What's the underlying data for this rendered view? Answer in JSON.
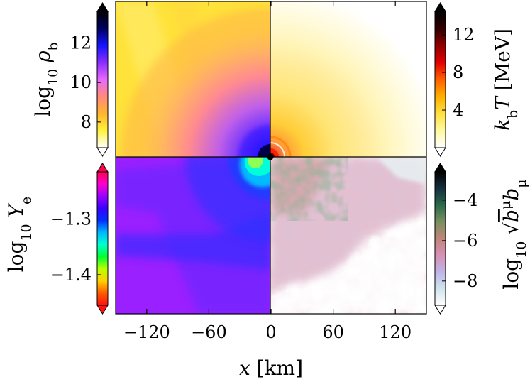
{
  "chart_data": {
    "type": "heatmap",
    "title": "",
    "xlabel": "x [km]",
    "x_ticks": [
      -120,
      -60,
      0,
      60,
      120
    ],
    "xlim": [
      -150,
      150
    ],
    "panels": [
      {
        "quantity": "log10 rho_b",
        "label_parts": [
          "log",
          "10",
          " ρ",
          "b"
        ],
        "quadrant": "top-left",
        "colormap": "plasma-white-yellow",
        "ticks": [
          8,
          10,
          12
        ],
        "range": [
          6.7,
          13.6
        ],
        "colors": [
          "#ffffff",
          "#fff33a",
          "#ffb52e",
          "#ff8a7a",
          "#e869ff",
          "#8a2cff",
          "#1414ff",
          "#000060",
          "#000000"
        ]
      },
      {
        "quantity": "k_b T [MeV]",
        "label_parts": [
          "k",
          "b",
          "T [MeV]"
        ],
        "quadrant": "top-right",
        "colormap": "hot-reversed",
        "ticks": [
          4,
          8,
          12
        ],
        "range": [
          0,
          14.5
        ],
        "colors": [
          "#ffffff",
          "#fff9a0",
          "#ffe040",
          "#ffb000",
          "#ff6000",
          "#e00000",
          "#900000",
          "#300000",
          "#000000"
        ]
      },
      {
        "quantity": "log10 Y_e",
        "label_parts": [
          "log",
          "10",
          " Y",
          "e"
        ],
        "quadrant": "bottom-left",
        "colormap": "rainbow",
        "ticks": [
          -1.3,
          -1.4
        ],
        "range": [
          -1.455,
          -1.215
        ],
        "colors": [
          "#ff1010",
          "#ff5a00",
          "#ffd000",
          "#b8ff00",
          "#00ff30",
          "#00ffd0",
          "#00b8ff",
          "#0030ff",
          "#3a00ff",
          "#9a00ff",
          "#ff00d0",
          "#ff0050"
        ]
      },
      {
        "quantity": "log10 sqrt(b^mu b_mu)",
        "label_parts": [
          "log",
          "10",
          " √",
          "b",
          "μ",
          "b",
          "μ"
        ],
        "quadrant": "bottom-right",
        "colormap": "cubehelix",
        "ticks": [
          -4,
          -6,
          -8
        ],
        "range": [
          -9.2,
          -2.6
        ],
        "colors": [
          "#ffffff",
          "#cfe4ec",
          "#bfb4e8",
          "#d790b4",
          "#c0857a",
          "#7a9060",
          "#2a6a4a",
          "#163040",
          "#000000"
        ]
      }
    ],
    "center_marker": "black dot at origin"
  }
}
